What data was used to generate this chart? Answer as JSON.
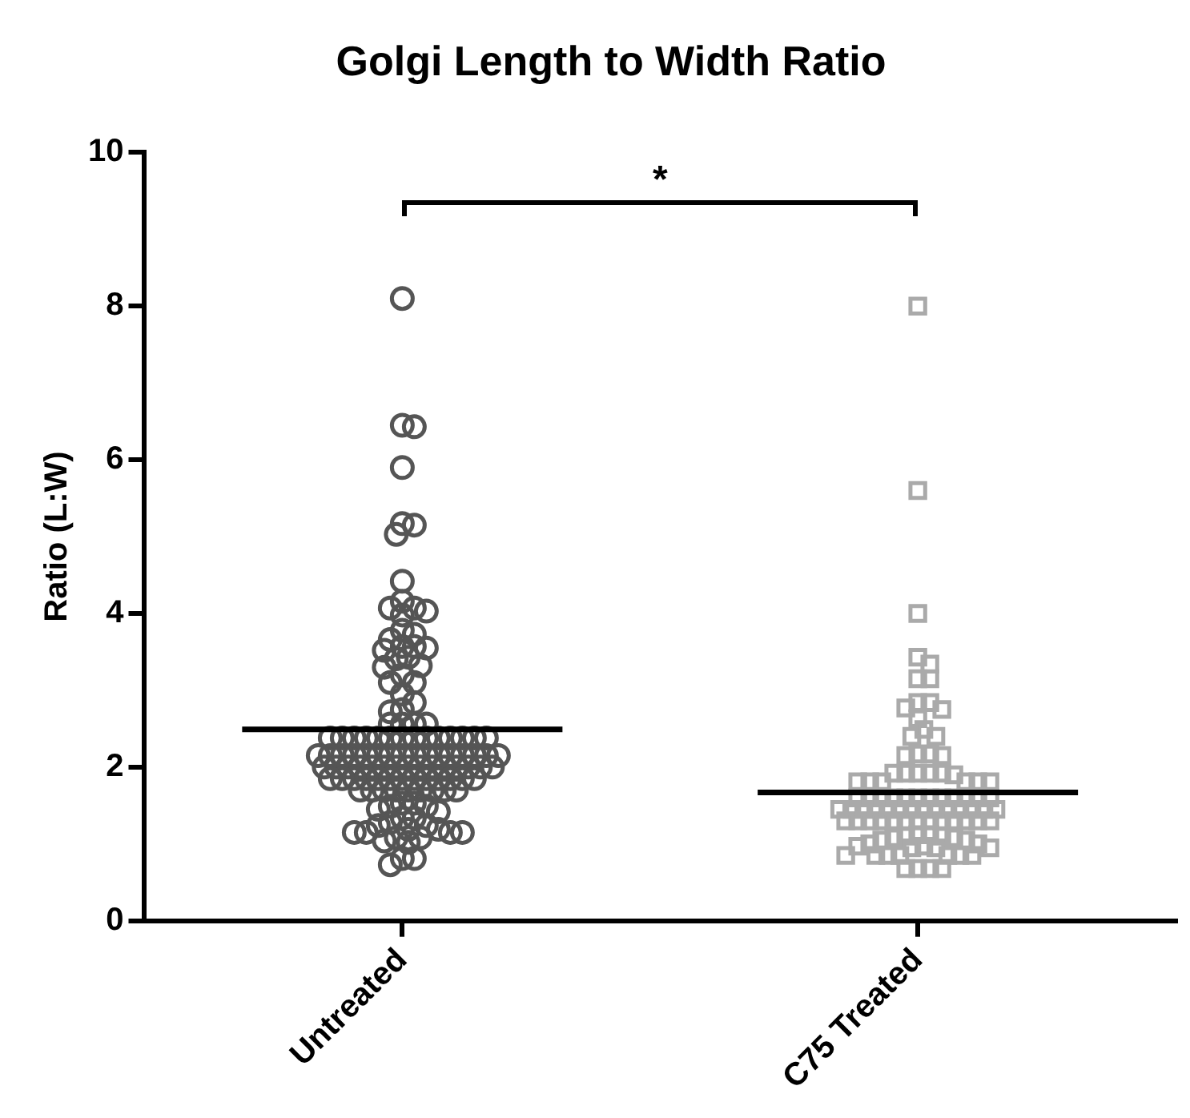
{
  "chart_data": {
    "type": "scatter",
    "title": "Golgi Length to Width Ratio",
    "ylabel": "Ratio (L:W)",
    "categories": [
      "Untreated",
      "C75 Treated"
    ],
    "ylim": [
      0,
      10
    ],
    "yticks": [
      0,
      2,
      4,
      6,
      8,
      10
    ],
    "grid": false,
    "legend": false,
    "annotations": [
      "*"
    ],
    "series": [
      {
        "marker": "circle",
        "color": "#555555",
        "x": [
          "Untreated",
          "Untreated",
          "Untreated",
          "Untreated",
          "Untreated",
          "Untreated",
          "Untreated",
          "Untreated",
          "Untreated",
          "Untreated",
          "Untreated",
          "Untreated",
          "Untreated",
          "Untreated",
          "Untreated",
          "Untreated",
          "Untreated",
          "Untreated",
          "Untreated",
          "Untreated",
          "Untreated",
          "Untreated",
          "Untreated",
          "Untreated",
          "Untreated",
          "Untreated",
          "Untreated",
          "Untreated",
          "Untreated",
          "Untreated",
          "Untreated",
          "Untreated",
          "Untreated",
          "Untreated",
          "Untreated",
          "Untreated",
          "Untreated",
          "Untreated",
          "Untreated",
          "Untreated",
          "Untreated",
          "Untreated",
          "Untreated",
          "Untreated",
          "Untreated",
          "Untreated",
          "Untreated",
          "Untreated",
          "Untreated",
          "Untreated",
          "Untreated",
          "Untreated",
          "Untreated",
          "Untreated",
          "Untreated",
          "Untreated",
          "Untreated",
          "Untreated",
          "Untreated",
          "Untreated",
          "Untreated",
          "Untreated",
          "Untreated",
          "Untreated",
          "Untreated",
          "Untreated",
          "Untreated",
          "Untreated",
          "Untreated",
          "Untreated",
          "Untreated",
          "Untreated",
          "Untreated",
          "Untreated",
          "Untreated",
          "Untreated",
          "Untreated",
          "Untreated",
          "Untreated",
          "Untreated",
          "Untreated",
          "Untreated",
          "Untreated",
          "Untreated",
          "Untreated",
          "Untreated",
          "Untreated",
          "Untreated",
          "Untreated",
          "Untreated",
          "Untreated",
          "Untreated",
          "Untreated",
          "Untreated",
          "Untreated",
          "Untreated",
          "Untreated",
          "Untreated",
          "Untreated",
          "Untreated",
          "Untreated",
          "Untreated",
          "Untreated",
          "Untreated",
          "Untreated",
          "Untreated",
          "Untreated",
          "Untreated",
          "Untreated",
          "Untreated",
          "Untreated",
          "Untreated",
          "Untreated",
          "Untreated",
          "Untreated",
          "Untreated",
          "Untreated",
          "Untreated",
          "Untreated",
          "Untreated",
          "Untreated",
          "Untreated",
          "Untreated",
          "Untreated",
          "Untreated",
          "Untreated"
        ],
        "values": [
          8.1,
          6.43,
          6.45,
          5.9,
          5.15,
          5.03,
          5.17,
          4.42,
          4.07,
          4.03,
          4.16,
          3.98,
          4.07,
          3.57,
          3.52,
          3.41,
          3.78,
          3.66,
          3.73,
          3.43,
          3.55,
          3.57,
          3.1,
          3.3,
          3.2,
          3.32,
          3.1,
          2.84,
          2.72,
          2.75,
          2.95,
          2.56,
          2.56,
          2.56,
          2.56,
          2.38,
          2.38,
          2.38,
          2.38,
          2.38,
          2.38,
          2.38,
          2.38,
          2.38,
          2.38,
          2.38,
          2.38,
          2.38,
          2.38,
          2.15,
          2.15,
          2.15,
          2.15,
          2.15,
          2.15,
          2.15,
          2.15,
          2.15,
          2.15,
          2.15,
          2.15,
          2.15,
          2.15,
          2.15,
          2.15,
          2.0,
          2.0,
          2.0,
          2.0,
          2.0,
          2.0,
          2.0,
          2.0,
          2.0,
          2.0,
          2.0,
          2.0,
          2.0,
          2.0,
          2.0,
          1.85,
          1.85,
          1.85,
          1.85,
          1.85,
          1.85,
          1.85,
          1.85,
          1.85,
          1.85,
          1.85,
          1.85,
          1.85,
          1.7,
          1.7,
          1.7,
          1.7,
          1.7,
          1.7,
          1.7,
          1.7,
          1.7,
          1.53,
          1.49,
          1.42,
          1.34,
          1.24,
          1.19,
          1.15,
          1.15,
          1.15,
          1.15,
          1.19,
          1.24,
          1.28,
          1.34,
          1.45,
          1.49,
          1.53,
          1.08,
          1.04,
          0.81,
          0.73,
          0.81,
          1.02,
          1.08
        ]
      },
      {
        "marker": "square",
        "color": "#aaaaaa",
        "x": [
          "C75 Treated",
          "C75 Treated",
          "C75 Treated",
          "C75 Treated",
          "C75 Treated",
          "C75 Treated",
          "C75 Treated",
          "C75 Treated",
          "C75 Treated",
          "C75 Treated",
          "C75 Treated",
          "C75 Treated",
          "C75 Treated",
          "C75 Treated",
          "C75 Treated",
          "C75 Treated",
          "C75 Treated",
          "C75 Treated",
          "C75 Treated",
          "C75 Treated",
          "C75 Treated",
          "C75 Treated",
          "C75 Treated",
          "C75 Treated",
          "C75 Treated",
          "C75 Treated",
          "C75 Treated",
          "C75 Treated",
          "C75 Treated",
          "C75 Treated",
          "C75 Treated",
          "C75 Treated",
          "C75 Treated",
          "C75 Treated",
          "C75 Treated",
          "C75 Treated",
          "C75 Treated",
          "C75 Treated",
          "C75 Treated",
          "C75 Treated",
          "C75 Treated",
          "C75 Treated",
          "C75 Treated",
          "C75 Treated",
          "C75 Treated",
          "C75 Treated",
          "C75 Treated",
          "C75 Treated",
          "C75 Treated",
          "C75 Treated",
          "C75 Treated",
          "C75 Treated",
          "C75 Treated",
          "C75 Treated",
          "C75 Treated",
          "C75 Treated",
          "C75 Treated",
          "C75 Treated",
          "C75 Treated",
          "C75 Treated",
          "C75 Treated",
          "C75 Treated",
          "C75 Treated",
          "C75 Treated",
          "C75 Treated",
          "C75 Treated",
          "C75 Treated",
          "C75 Treated",
          "C75 Treated",
          "C75 Treated",
          "C75 Treated",
          "C75 Treated",
          "C75 Treated",
          "C75 Treated",
          "C75 Treated",
          "C75 Treated",
          "C75 Treated",
          "C75 Treated",
          "C75 Treated",
          "C75 Treated",
          "C75 Treated",
          "C75 Treated",
          "C75 Treated",
          "C75 Treated",
          "C75 Treated",
          "C75 Treated",
          "C75 Treated",
          "C75 Treated",
          "C75 Treated",
          "C75 Treated",
          "C75 Treated",
          "C75 Treated",
          "C75 Treated",
          "C75 Treated",
          "C75 Treated",
          "C75 Treated"
        ],
        "values": [
          8.0,
          5.6,
          4.0,
          3.43,
          3.34,
          3.15,
          3.15,
          2.84,
          2.77,
          2.63,
          2.75,
          2.84,
          2.4,
          2.4,
          2.49,
          2.17,
          2.15,
          2.15,
          2.17,
          1.92,
          1.92,
          1.9,
          1.92,
          1.92,
          1.92,
          1.81,
          1.81,
          1.81,
          1.81,
          1.81,
          1.81,
          1.6,
          1.6,
          1.6,
          1.6,
          1.6,
          1.6,
          1.6,
          1.6,
          1.6,
          1.6,
          1.6,
          1.6,
          1.45,
          1.45,
          1.45,
          1.45,
          1.45,
          1.45,
          1.45,
          1.45,
          1.45,
          1.45,
          1.45,
          1.45,
          1.45,
          1.45,
          1.3,
          1.3,
          1.3,
          1.3,
          1.3,
          1.3,
          1.3,
          1.3,
          1.3,
          1.3,
          1.3,
          1.3,
          1.3,
          1.12,
          1.1,
          1.08,
          1.05,
          1.0,
          0.97,
          0.95,
          0.95,
          0.95,
          0.97,
          1.0,
          1.05,
          1.08,
          1.1,
          1.12,
          0.85,
          0.85,
          0.85,
          0.85,
          0.85,
          0.85,
          0.85,
          0.68,
          0.68,
          0.68,
          0.68
        ]
      }
    ],
    "ref_lines": [
      {
        "axis": "y",
        "value": 2.49,
        "color": "#000000"
      },
      {
        "axis": "y",
        "value": 1.67,
        "color": "#000000"
      }
    ]
  }
}
